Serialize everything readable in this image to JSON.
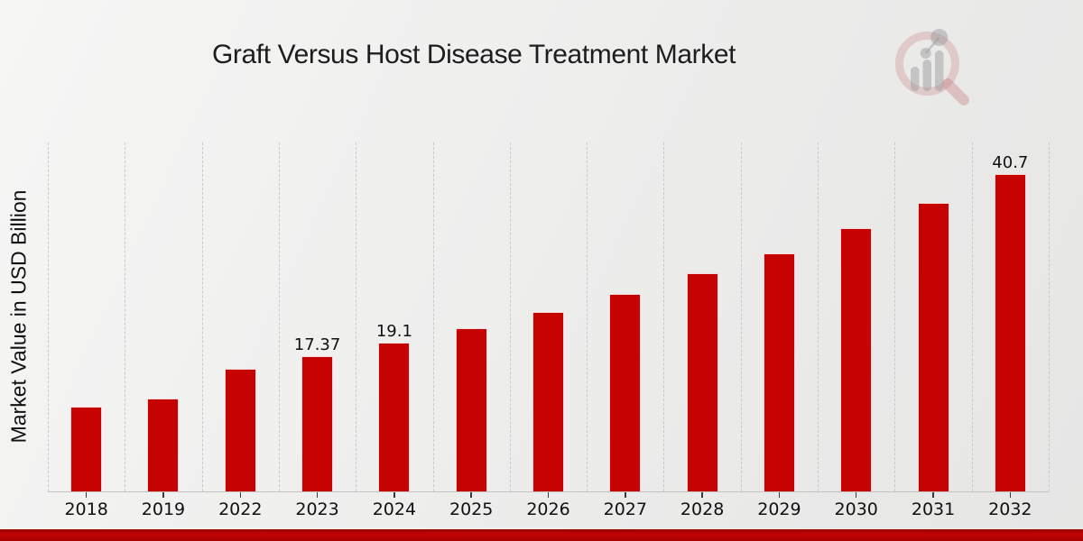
{
  "title": "Graft Versus Host Disease Treatment Market",
  "y_axis_label": "Market Value in USD Billion",
  "logo_name": "market-research-future-watermark",
  "colors": {
    "bar": "#c60303",
    "bar_edge": "rgba(255,255,255,0.85)",
    "grid": "#c9c9c9",
    "axis_line": "#c2c2c2",
    "tick": "#3a3a3a",
    "text": "#111111",
    "footer_red": "#b00202"
  },
  "chart_data": {
    "type": "bar",
    "title": "Graft Versus Host Disease Treatment Market",
    "xlabel": "",
    "ylabel": "Market Value in USD Billion",
    "categories": [
      "2018",
      "2019",
      "2022",
      "2023",
      "2024",
      "2025",
      "2026",
      "2027",
      "2028",
      "2029",
      "2030",
      "2031",
      "2032"
    ],
    "values": [
      10.8,
      11.9,
      15.7,
      17.37,
      19.1,
      20.9,
      23.0,
      25.3,
      27.9,
      30.5,
      33.7,
      37.0,
      40.7
    ],
    "value_labels": [
      "",
      "",
      "",
      "17.37",
      "19.1",
      "",
      "",
      "",
      "",
      "",
      "",
      "",
      "40.7"
    ],
    "ylim": [
      0,
      44.7
    ],
    "grid": "vertical-dashed",
    "legend": "none",
    "bar_color": "#c60303"
  }
}
